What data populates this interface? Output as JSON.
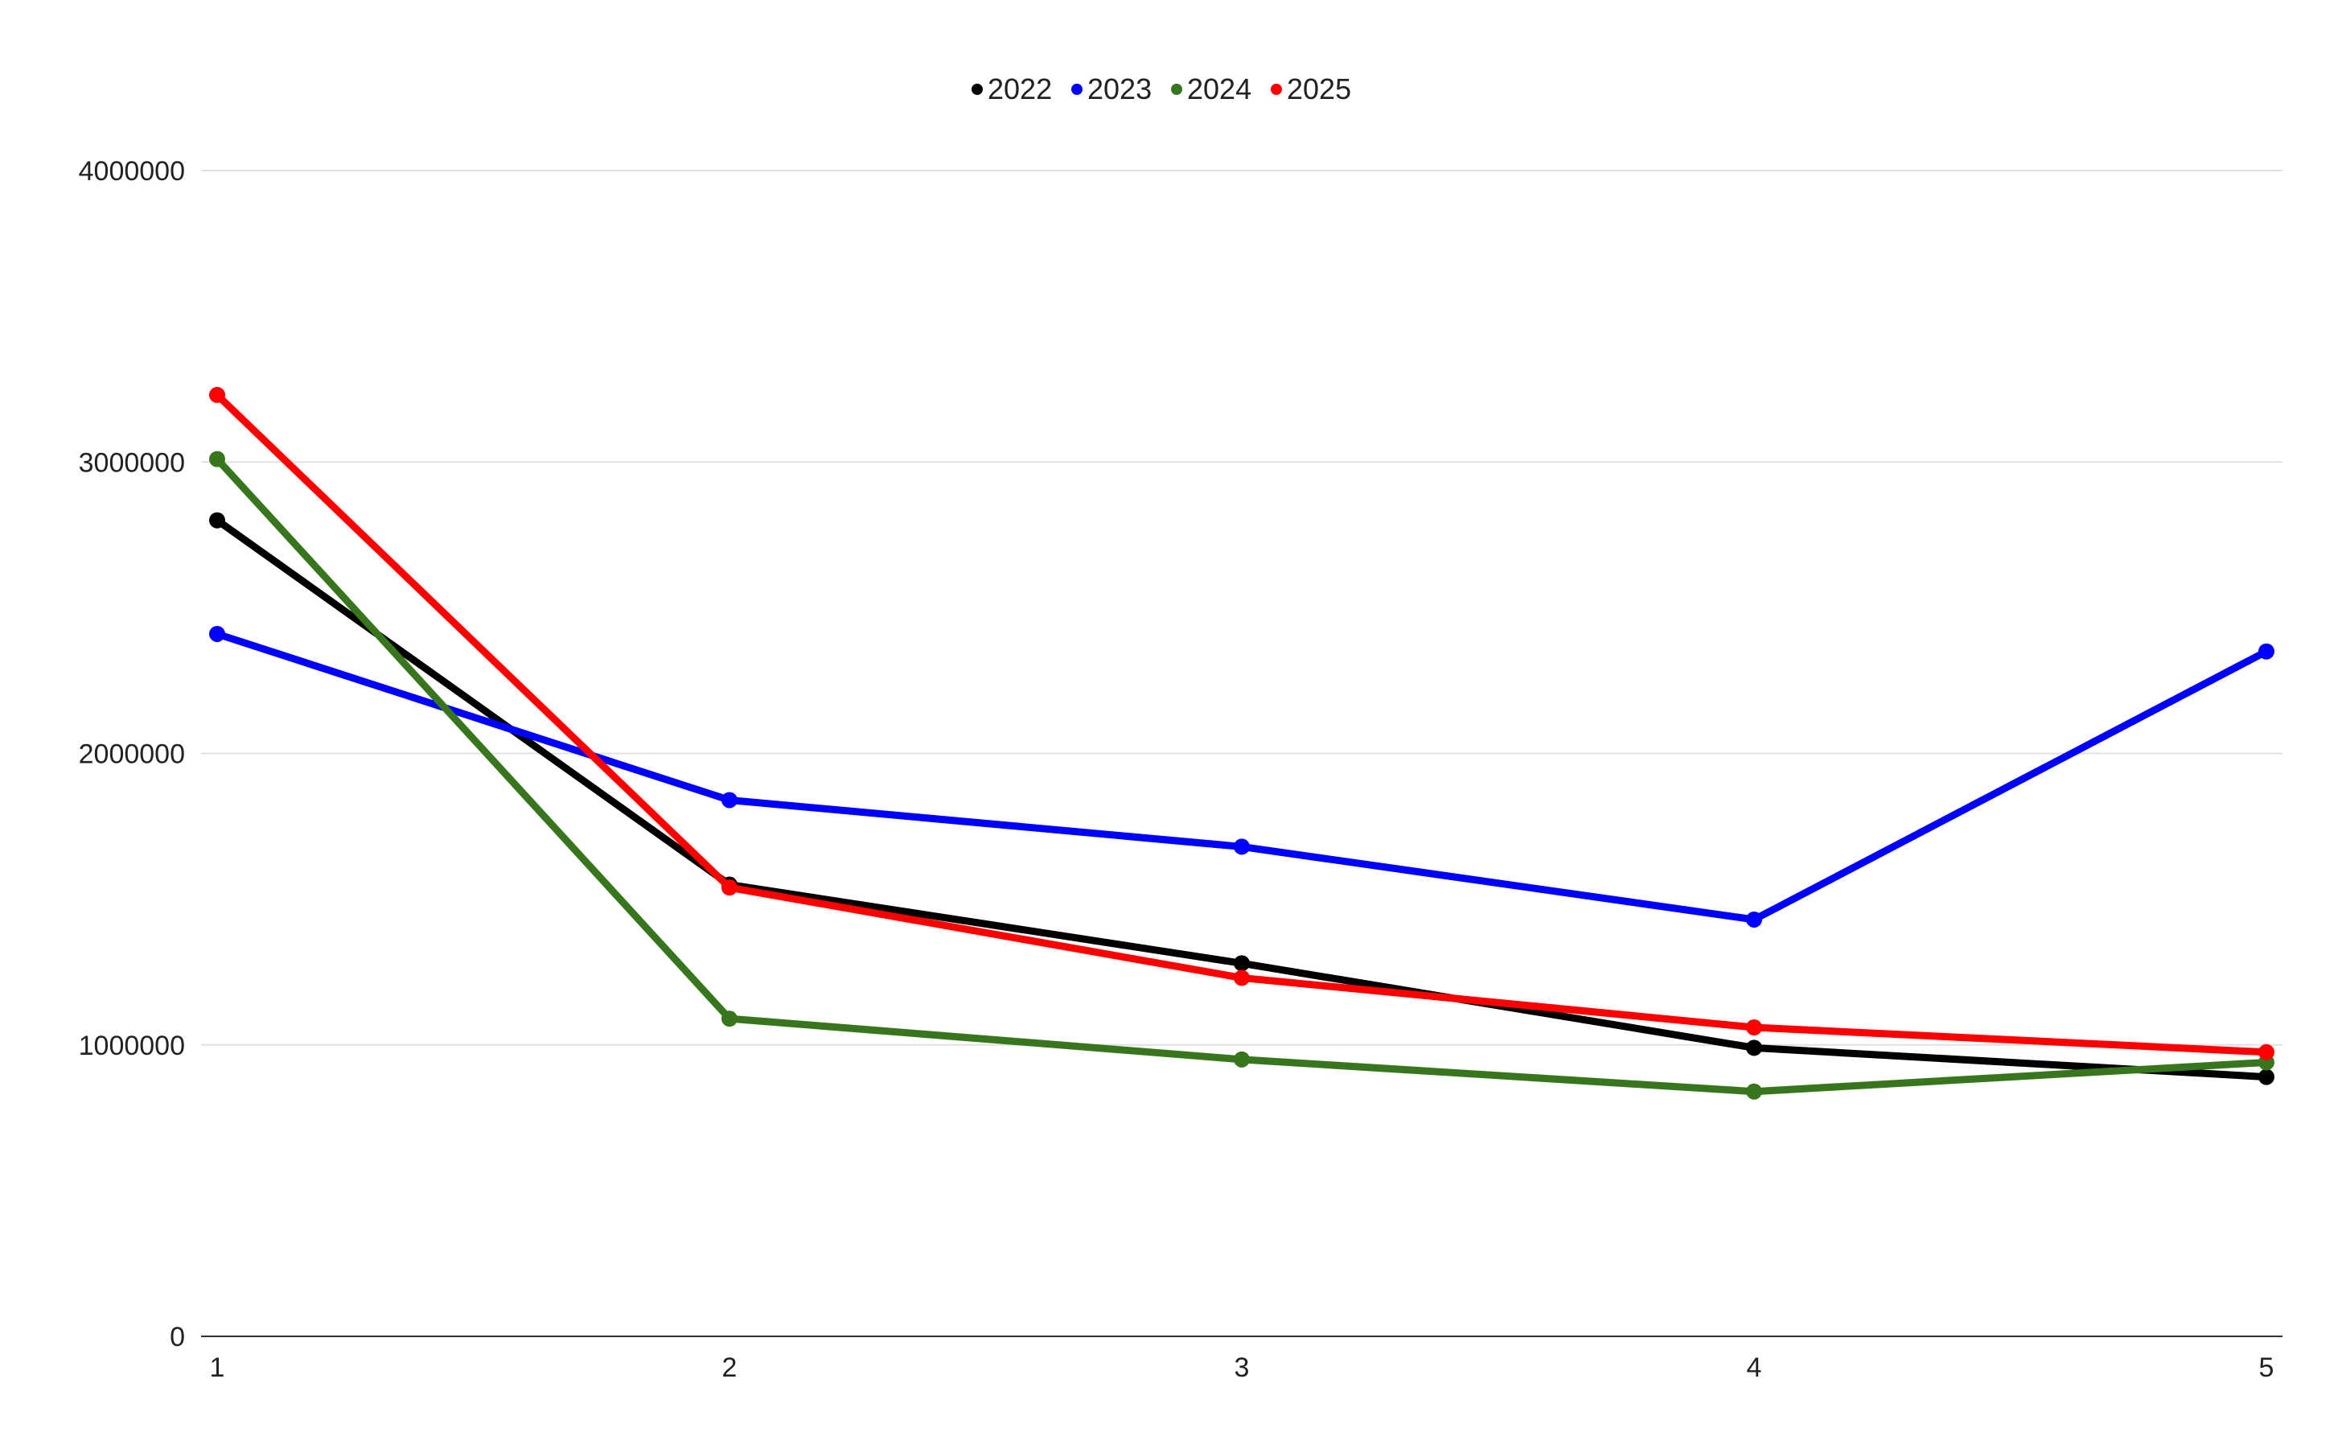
{
  "chart_data": {
    "type": "line",
    "title": "",
    "xlabel": "",
    "ylabel": "",
    "x": [
      1,
      2,
      3,
      4,
      5
    ],
    "x_tick_labels": [
      "1",
      "2",
      "3",
      "4",
      "5"
    ],
    "ylim": [
      0,
      4000000
    ],
    "y_ticks": [
      0,
      1000000,
      2000000,
      3000000,
      4000000
    ],
    "y_tick_labels": [
      "0",
      "1000000",
      "2000000",
      "3000000",
      "4000000"
    ],
    "grid": true,
    "legend_position": "top-center",
    "series": [
      {
        "name": "2022",
        "color": "#000000",
        "values": [
          2800000,
          1550000,
          1280000,
          990000,
          890000
        ]
      },
      {
        "name": "2023",
        "color": "#0000ff",
        "values": [
          2410000,
          1840000,
          1680000,
          1430000,
          2350000
        ]
      },
      {
        "name": "2024",
        "color": "#38761d",
        "values": [
          3010000,
          1090000,
          950000,
          840000,
          940000
        ]
      },
      {
        "name": "2025",
        "color": "#ff0000",
        "values": [
          3230000,
          1540000,
          1230000,
          1060000,
          975000
        ]
      }
    ]
  }
}
